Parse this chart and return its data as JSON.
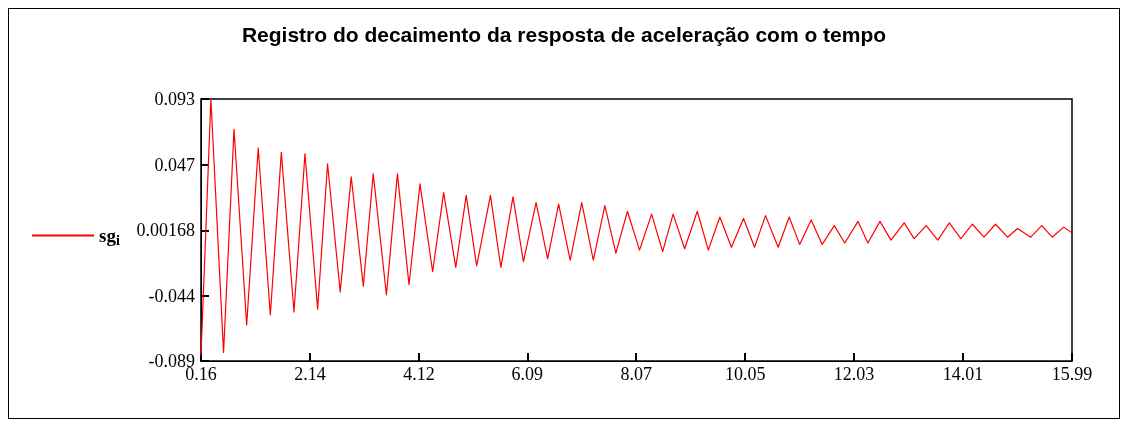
{
  "chart_data": {
    "type": "line",
    "title": "Registro do decaimento da resposta de aceleração com o tempo",
    "legend": "left",
    "grid": false,
    "marker": "none",
    "line_style": "solid",
    "xlim": [
      0.16,
      15.99
    ],
    "xticks": [
      0.16,
      2.14,
      4.12,
      6.09,
      8.07,
      10.05,
      12.03,
      14.01,
      15.99
    ],
    "ylim": [
      -0.089,
      0.093
    ],
    "yticks": [
      -0.089,
      -0.044,
      0.00168,
      0.047,
      0.093
    ],
    "series": [
      {
        "name": "sg$_{i}$",
        "color": "#ff0000",
        "x": [
          0.16,
          0.34,
          0.57,
          0.76,
          0.99,
          1.2,
          1.42,
          1.62,
          1.85,
          2.05,
          2.28,
          2.46,
          2.69,
          2.89,
          3.11,
          3.29,
          3.53,
          3.73,
          3.94,
          4.14,
          4.37,
          4.57,
          4.79,
          4.98,
          5.17,
          5.42,
          5.61,
          5.83,
          6.02,
          6.25,
          6.46,
          6.66,
          6.87,
          7.08,
          7.29,
          7.5,
          7.7,
          7.91,
          8.13,
          8.35,
          8.55,
          8.74,
          8.95,
          9.18,
          9.38,
          9.59,
          9.8,
          10.02,
          10.22,
          10.42,
          10.65,
          10.85,
          11.04,
          11.25,
          11.45,
          11.67,
          11.86,
          12.1,
          12.28,
          12.5,
          12.7,
          12.94,
          13.12,
          13.34,
          13.55,
          13.76,
          13.97,
          14.18,
          14.39,
          14.6,
          14.82,
          15.0,
          15.24,
          15.44,
          15.63,
          15.84,
          15.99
        ],
        "values": [
          -0.085,
          0.093,
          -0.083,
          0.072,
          -0.064,
          0.059,
          -0.057,
          0.056,
          -0.055,
          0.055,
          -0.053,
          0.048,
          -0.041,
          0.039,
          -0.037,
          0.041,
          -0.043,
          0.041,
          -0.036,
          0.034,
          -0.027,
          0.028,
          -0.024,
          0.026,
          -0.023,
          0.026,
          -0.024,
          0.025,
          -0.02,
          0.021,
          -0.018,
          0.02,
          -0.019,
          0.021,
          -0.019,
          0.019,
          -0.014,
          0.015,
          -0.012,
          0.013,
          -0.013,
          0.013,
          -0.011,
          0.015,
          -0.012,
          0.011,
          -0.01,
          0.01,
          -0.01,
          0.012,
          -0.01,
          0.011,
          -0.008,
          0.009,
          -0.008,
          0.005,
          -0.007,
          0.008,
          -0.007,
          0.008,
          -0.005,
          0.007,
          -0.004,
          0.005,
          -0.005,
          0.007,
          -0.004,
          0.006,
          -0.003,
          0.006,
          -0.003,
          0.003,
          -0.003,
          0.005,
          -0.003,
          0.004,
          0.0
        ]
      }
    ]
  }
}
